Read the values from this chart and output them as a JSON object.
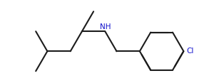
{
  "bg": "#ffffff",
  "bond_color": "#1c1c1c",
  "N_color": "#1010cc",
  "Cl_color": "#1010cc",
  "lw": 1.5,
  "figsize": [
    3.14,
    1.1
  ],
  "dpi": 100
}
